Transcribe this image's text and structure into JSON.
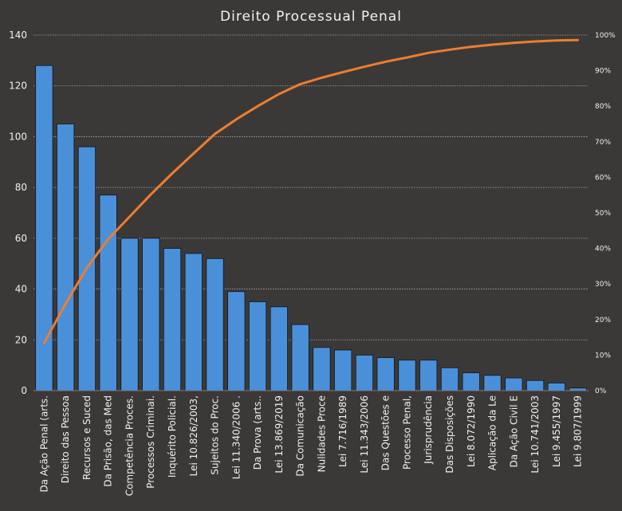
{
  "chart_data": {
    "type": "bar",
    "title": "Direito Processual Penal",
    "xlabel": "",
    "ylabel": "",
    "ylim": [
      0,
      140
    ],
    "y_ticks": [
      "0",
      "20",
      "40",
      "60",
      "80",
      "100",
      "120",
      "140"
    ],
    "y2lim": [
      0,
      100
    ],
    "y2_ticks": [
      "0%",
      "10%",
      "20%",
      "30%",
      "40%",
      "50%",
      "60%",
      "70%",
      "80%",
      "90%",
      "100%"
    ],
    "grid": true,
    "legend": "none",
    "categories": [
      "Da Ação Penal (arts.",
      "Direito das Pessoa",
      "Recursos e Suced",
      "Da Prisão, das Med",
      "Competência Proces.",
      "Processos Criminai.",
      "Inquérito Policial.",
      "Lei 10.826/2003,",
      "Sujeitos do Proc.",
      "Lei 11.340/2006 .",
      "Da Prova (arts..",
      "Lei 13.869/2019",
      "Da Comunicação",
      "Nulidades Proce",
      "Lei 7.716/1989",
      "Lei 11.343/2006",
      "Das Questões e",
      "Processo Penal,",
      "Jurisprudência",
      "Das Disposições",
      "Lei 8.072/1990",
      "Aplicação da Le",
      "Da Ação Civil E",
      "Lei 10.741/2003",
      "Lei 9.455/1997",
      "Lei 9.807/1999"
    ],
    "series": [
      {
        "type": "bar",
        "axis": "left",
        "values": [
          128,
          105,
          96,
          77,
          60,
          60,
          56,
          54,
          52,
          39,
          35,
          33,
          26,
          17,
          16,
          14,
          13,
          12,
          12,
          9,
          7,
          6,
          5,
          4,
          3,
          1
        ]
      },
      {
        "type": "line",
        "axis": "right",
        "values": [
          13.4,
          24.4,
          34.5,
          42.6,
          48.9,
          55.2,
          61.1,
          66.7,
          72.2,
          76.3,
          80.0,
          83.4,
          86.2,
          88.0,
          89.6,
          91.1,
          92.5,
          93.7,
          95.0,
          95.9,
          96.7,
          97.3,
          97.8,
          98.2,
          98.5,
          98.6
        ]
      }
    ],
    "colors": {
      "background": "#3b3937",
      "bar_fill": "#4a90d9",
      "bar_stroke": "#0e1420",
      "line": "#ed7d31",
      "grid": "#a8a8a8",
      "text": "#f0f0f0"
    }
  }
}
